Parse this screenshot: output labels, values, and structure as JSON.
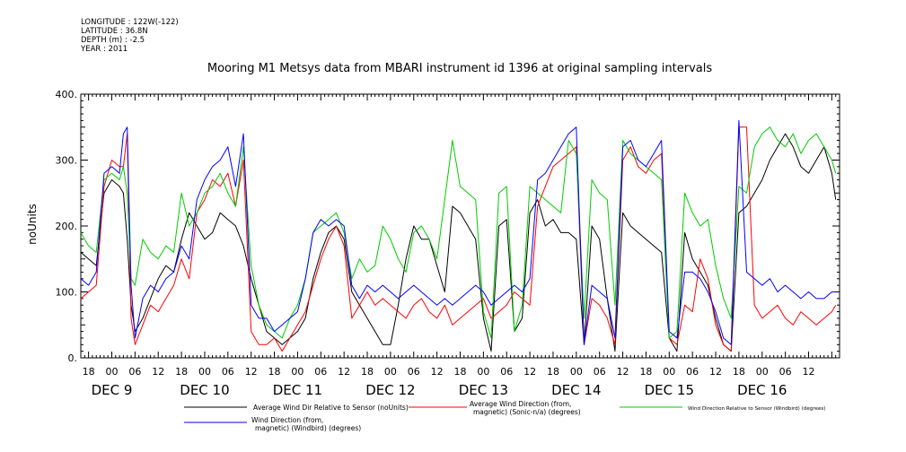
{
  "meta": {
    "longitude": "LONGITUDE : 122W(-122)",
    "latitude": "LATITUDE : 36.8N",
    "depth": "DEPTH (m) : -2.5",
    "year": "YEAR : 2011"
  },
  "chart_data": {
    "type": "line",
    "title": "Mooring M1 Metsys data from MBARI instrument id 1396 at original sampling intervals",
    "ylabel": "noUnits",
    "xlabel": "",
    "ylim": [
      0,
      400
    ],
    "y_ticks": [
      0,
      100,
      200,
      300,
      400
    ],
    "y_tick_labels": [
      "0.",
      "100.",
      "200.",
      "300.",
      "400."
    ],
    "xlim_hours": [
      -8,
      188
    ],
    "x_hour_tick_labels": [
      "18",
      "00",
      "06",
      "12",
      "18",
      "00",
      "06",
      "12",
      "18",
      "00",
      "06",
      "12",
      "18",
      "00",
      "06",
      "12",
      "18",
      "00",
      "06",
      "12",
      "18",
      "00",
      "06",
      "12",
      "18",
      "00",
      "06",
      "12",
      "18",
      "00",
      "06",
      "12"
    ],
    "x_day_labels": [
      "DEC  9",
      "DEC 10",
      "DEC 11",
      "DEC 12",
      "DEC 13",
      "DEC 14",
      "DEC 15",
      "DEC 16"
    ],
    "grid": false,
    "legend_placement": "bottom",
    "series": [
      {
        "name": "Average Wind Dir Relative to Sensor (noUnits)",
        "color": "#000000",
        "x": [
          -8,
          -6,
          -4,
          -2,
          0,
          2,
          3,
          4,
          5,
          6,
          8,
          10,
          12,
          14,
          16,
          18,
          20,
          22,
          24,
          26,
          28,
          30,
          32,
          34,
          36,
          38,
          40,
          42,
          44,
          46,
          48,
          50,
          52,
          54,
          56,
          58,
          60,
          62,
          64,
          66,
          68,
          70,
          72,
          74,
          76,
          78,
          80,
          82,
          84,
          86,
          88,
          90,
          92,
          94,
          96,
          98,
          100,
          102,
          104,
          106,
          108,
          110,
          112,
          114,
          116,
          118,
          120,
          122,
          124,
          126,
          128,
          130,
          132,
          134,
          136,
          138,
          140,
          142,
          144,
          146,
          148,
          150,
          152,
          154,
          156,
          158,
          160,
          162,
          164,
          166,
          168,
          170,
          172,
          174,
          176,
          178,
          180,
          182,
          184,
          186,
          187
        ],
        "y": [
          160,
          150,
          140,
          250,
          270,
          260,
          250,
          180,
          80,
          40,
          60,
          90,
          120,
          140,
          130,
          180,
          220,
          200,
          180,
          190,
          220,
          210,
          200,
          170,
          120,
          80,
          40,
          30,
          20,
          30,
          40,
          60,
          120,
          160,
          190,
          200,
          180,
          100,
          80,
          60,
          40,
          20,
          20,
          80,
          150,
          200,
          180,
          180,
          140,
          100,
          230,
          220,
          200,
          180,
          60,
          10,
          200,
          210,
          40,
          60,
          220,
          240,
          200,
          210,
          190,
          190,
          180,
          20,
          200,
          180,
          90,
          10,
          220,
          200,
          190,
          180,
          170,
          160,
          30,
          10,
          190,
          150,
          130,
          110,
          60,
          20,
          10,
          220,
          230,
          250,
          270,
          300,
          320,
          340,
          320,
          290,
          280,
          300,
          320,
          280,
          240
        ]
      },
      {
        "name": "Average Wind Direction (from, magnetic) (Sonic-n/a) (degrees)",
        "color": "#ff0000",
        "x": [
          -8,
          -6,
          -4,
          -2,
          0,
          2,
          3,
          4,
          5,
          6,
          8,
          10,
          12,
          14,
          16,
          18,
          20,
          22,
          24,
          26,
          28,
          30,
          32,
          34,
          36,
          38,
          40,
          42,
          44,
          46,
          48,
          50,
          52,
          54,
          56,
          58,
          60,
          62,
          64,
          66,
          68,
          70,
          72,
          74,
          76,
          78,
          80,
          82,
          84,
          86,
          88,
          90,
          92,
          94,
          96,
          98,
          100,
          102,
          104,
          106,
          108,
          110,
          112,
          114,
          116,
          118,
          120,
          122,
          124,
          126,
          128,
          130,
          132,
          134,
          136,
          138,
          140,
          142,
          144,
          146,
          148,
          150,
          152,
          154,
          156,
          158,
          160,
          162,
          164,
          166,
          168,
          170,
          172,
          174,
          176,
          178,
          180,
          182,
          184,
          186,
          187
        ],
        "y": [
          90,
          100,
          110,
          260,
          300,
          290,
          290,
          340,
          60,
          20,
          50,
          80,
          70,
          90,
          110,
          150,
          120,
          220,
          240,
          270,
          260,
          280,
          230,
          300,
          40,
          20,
          20,
          30,
          10,
          30,
          50,
          70,
          110,
          150,
          180,
          200,
          170,
          60,
          80,
          100,
          80,
          90,
          80,
          70,
          60,
          80,
          90,
          70,
          60,
          80,
          50,
          60,
          70,
          80,
          90,
          60,
          70,
          80,
          100,
          90,
          80,
          230,
          260,
          290,
          300,
          310,
          320,
          20,
          90,
          80,
          60,
          20,
          300,
          320,
          290,
          280,
          300,
          310,
          30,
          20,
          80,
          70,
          150,
          120,
          50,
          20,
          10,
          350,
          350,
          80,
          60,
          70,
          80,
          60,
          50,
          70,
          60,
          50,
          60,
          70,
          80
        ]
      },
      {
        "name": "Wind Direction Relative to Sensor (Windbird) (degrees)",
        "color": "#00cc00",
        "x": [
          -8,
          -6,
          -4,
          -2,
          0,
          2,
          3,
          4,
          5,
          6,
          8,
          10,
          12,
          14,
          16,
          18,
          20,
          22,
          24,
          26,
          28,
          30,
          32,
          34,
          36,
          38,
          40,
          42,
          44,
          46,
          48,
          50,
          52,
          54,
          56,
          58,
          60,
          62,
          64,
          66,
          68,
          70,
          72,
          74,
          76,
          78,
          80,
          82,
          84,
          86,
          88,
          90,
          92,
          94,
          96,
          98,
          100,
          102,
          104,
          106,
          108,
          110,
          112,
          114,
          116,
          118,
          120,
          122,
          124,
          126,
          128,
          130,
          132,
          134,
          136,
          138,
          140,
          142,
          144,
          146,
          148,
          150,
          152,
          154,
          156,
          158,
          160,
          162,
          164,
          166,
          168,
          170,
          172,
          174,
          176,
          178,
          180,
          182,
          184,
          186,
          187
        ],
        "y": [
          190,
          170,
          160,
          270,
          280,
          270,
          290,
          250,
          120,
          110,
          180,
          160,
          150,
          170,
          160,
          250,
          200,
          220,
          250,
          260,
          280,
          250,
          230,
          320,
          140,
          80,
          50,
          40,
          30,
          60,
          80,
          120,
          190,
          200,
          210,
          220,
          190,
          120,
          150,
          130,
          140,
          200,
          180,
          150,
          130,
          190,
          200,
          180,
          150,
          240,
          330,
          260,
          250,
          240,
          70,
          30,
          250,
          260,
          40,
          80,
          260,
          250,
          240,
          230,
          220,
          330,
          310,
          60,
          270,
          250,
          240,
          80,
          330,
          310,
          300,
          290,
          280,
          270,
          30,
          40,
          250,
          220,
          200,
          210,
          140,
          90,
          60,
          260,
          250,
          320,
          340,
          350,
          330,
          320,
          340,
          310,
          330,
          340,
          320,
          300,
          280
        ]
      },
      {
        "name": "Wind Direction (from, magnetic) (Windbird) (degrees)",
        "color": "#0000ff",
        "x": [
          -8,
          -6,
          -4,
          -2,
          0,
          2,
          3,
          4,
          5,
          6,
          8,
          10,
          12,
          14,
          16,
          18,
          20,
          22,
          24,
          26,
          28,
          30,
          32,
          34,
          36,
          38,
          40,
          42,
          44,
          46,
          48,
          50,
          52,
          54,
          56,
          58,
          60,
          62,
          64,
          66,
          68,
          70,
          72,
          74,
          76,
          78,
          80,
          82,
          84,
          86,
          88,
          90,
          92,
          94,
          96,
          98,
          100,
          102,
          104,
          106,
          108,
          110,
          112,
          114,
          116,
          118,
          120,
          122,
          124,
          126,
          128,
          130,
          132,
          134,
          136,
          138,
          140,
          142,
          144,
          146,
          148,
          150,
          152,
          154,
          156,
          158,
          160,
          162,
          164,
          166,
          168,
          170,
          172,
          174,
          176,
          178,
          180,
          182,
          184,
          186,
          187
        ],
        "y": [
          120,
          110,
          130,
          280,
          290,
          280,
          340,
          350,
          110,
          30,
          90,
          110,
          100,
          120,
          130,
          170,
          150,
          240,
          270,
          290,
          300,
          320,
          260,
          340,
          80,
          60,
          60,
          40,
          50,
          60,
          70,
          120,
          190,
          210,
          200,
          210,
          200,
          110,
          90,
          110,
          100,
          110,
          100,
          90,
          100,
          110,
          100,
          90,
          80,
          90,
          80,
          90,
          100,
          110,
          100,
          80,
          90,
          100,
          110,
          100,
          120,
          270,
          280,
          300,
          320,
          340,
          350,
          20,
          110,
          100,
          90,
          30,
          320,
          330,
          300,
          290,
          310,
          330,
          40,
          30,
          130,
          130,
          120,
          100,
          70,
          30,
          20,
          360,
          130,
          120,
          110,
          120,
          100,
          110,
          100,
          90,
          100,
          90,
          90,
          100,
          100
        ]
      }
    ]
  },
  "legend": {
    "item1": "Average Wind Dir Relative to Sensor (noUnits)",
    "item2_line1": "Average Wind Direction (from,",
    "item2_line2": "magnetic) (Sonic-n/a) (degrees)",
    "item3": "Wind Direction Relative to Sensor (Windbird) (degrees)",
    "item4_line1": "Wind Direction (from,",
    "item4_line2": "magnetic) (Windbird) (degrees)"
  }
}
